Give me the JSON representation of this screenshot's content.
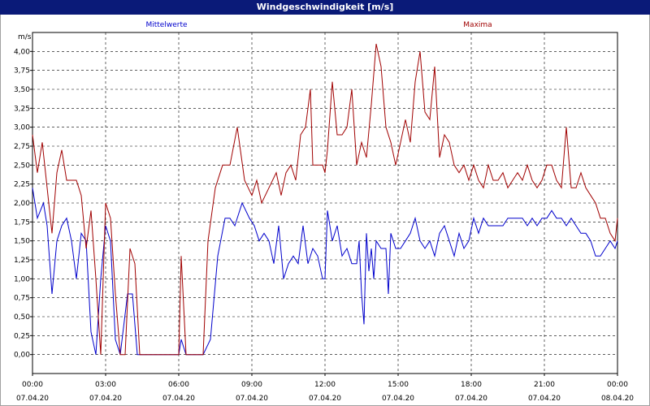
{
  "window": {
    "title": "Windgeschwindigkeit [m/s]"
  },
  "chart_data": {
    "type": "line",
    "title": "Windgeschwindigkeit [m/s]",
    "ylabel": "m/s",
    "xlabel": "",
    "ylim": [
      -0.25,
      4.25
    ],
    "grid": true,
    "legend_placement": "top",
    "x_ticks": [
      {
        "time": "00:00",
        "date": "07.04.20"
      },
      {
        "time": "03:00",
        "date": "07.04.20"
      },
      {
        "time": "06:00",
        "date": "07.04.20"
      },
      {
        "time": "09:00",
        "date": "07.04.20"
      },
      {
        "time": "12:00",
        "date": "07.04.20"
      },
      {
        "time": "15:00",
        "date": "07.04.20"
      },
      {
        "time": "18:00",
        "date": "07.04.20"
      },
      {
        "time": "21:00",
        "date": "07.04.20"
      },
      {
        "time": "00:00",
        "date": "08.04.20"
      }
    ],
    "y_ticks": [
      "0,00",
      "0,25",
      "0,50",
      "0,75",
      "1,00",
      "1,25",
      "1,50",
      "1,75",
      "2,00",
      "2,25",
      "2,50",
      "2,75",
      "3,00",
      "3,25",
      "3,50",
      "3,75",
      "4,00"
    ],
    "series": [
      {
        "name": "Mittelwerte",
        "color": "#0000cc",
        "points": [
          [
            0,
            2.2
          ],
          [
            0.2,
            1.8
          ],
          [
            0.45,
            2.0
          ],
          [
            0.6,
            1.7
          ],
          [
            0.8,
            0.8
          ],
          [
            1.0,
            1.5
          ],
          [
            1.2,
            1.7
          ],
          [
            1.4,
            1.8
          ],
          [
            1.6,
            1.5
          ],
          [
            1.8,
            1.0
          ],
          [
            2.0,
            1.6
          ],
          [
            2.2,
            1.5
          ],
          [
            2.4,
            0.3
          ],
          [
            2.6,
            0.0
          ],
          [
            2.8,
            1.0
          ],
          [
            3.0,
            1.7
          ],
          [
            3.2,
            1.5
          ],
          [
            3.4,
            0.2
          ],
          [
            3.6,
            0.0
          ],
          [
            3.9,
            0.8
          ],
          [
            4.1,
            0.8
          ],
          [
            4.3,
            0.0
          ],
          [
            4.5,
            0.0
          ],
          [
            5.0,
            0.0
          ],
          [
            5.5,
            0.0
          ],
          [
            6.0,
            0.0
          ],
          [
            6.1,
            0.2
          ],
          [
            6.3,
            0.0
          ],
          [
            7.0,
            0.0
          ],
          [
            7.3,
            0.2
          ],
          [
            7.6,
            1.3
          ],
          [
            7.9,
            1.8
          ],
          [
            8.1,
            1.8
          ],
          [
            8.3,
            1.7
          ],
          [
            8.6,
            2.0
          ],
          [
            8.9,
            1.8
          ],
          [
            9.1,
            1.7
          ],
          [
            9.3,
            1.5
          ],
          [
            9.5,
            1.6
          ],
          [
            9.7,
            1.5
          ],
          [
            9.9,
            1.2
          ],
          [
            10.1,
            1.7
          ],
          [
            10.3,
            1.0
          ],
          [
            10.5,
            1.2
          ],
          [
            10.7,
            1.3
          ],
          [
            10.9,
            1.2
          ],
          [
            11.1,
            1.7
          ],
          [
            11.3,
            1.2
          ],
          [
            11.5,
            1.4
          ],
          [
            11.7,
            1.3
          ],
          [
            11.9,
            1.0
          ],
          [
            12.0,
            1.0
          ],
          [
            12.1,
            1.9
          ],
          [
            12.3,
            1.5
          ],
          [
            12.5,
            1.7
          ],
          [
            12.7,
            1.3
          ],
          [
            12.9,
            1.4
          ],
          [
            13.1,
            1.2
          ],
          [
            13.3,
            1.2
          ],
          [
            13.4,
            1.5
          ],
          [
            13.5,
            0.8
          ],
          [
            13.6,
            0.4
          ],
          [
            13.7,
            1.6
          ],
          [
            13.8,
            1.1
          ],
          [
            13.9,
            1.4
          ],
          [
            14.0,
            1.0
          ],
          [
            14.1,
            1.5
          ],
          [
            14.3,
            1.4
          ],
          [
            14.5,
            1.4
          ],
          [
            14.6,
            0.8
          ],
          [
            14.7,
            1.6
          ],
          [
            14.9,
            1.4
          ],
          [
            15.1,
            1.4
          ],
          [
            15.3,
            1.5
          ],
          [
            15.5,
            1.6
          ],
          [
            15.7,
            1.8
          ],
          [
            15.9,
            1.5
          ],
          [
            16.1,
            1.4
          ],
          [
            16.3,
            1.5
          ],
          [
            16.5,
            1.3
          ],
          [
            16.7,
            1.6
          ],
          [
            16.9,
            1.7
          ],
          [
            17.1,
            1.5
          ],
          [
            17.3,
            1.3
          ],
          [
            17.5,
            1.6
          ],
          [
            17.7,
            1.4
          ],
          [
            17.9,
            1.5
          ],
          [
            18.1,
            1.8
          ],
          [
            18.3,
            1.6
          ],
          [
            18.5,
            1.8
          ],
          [
            18.7,
            1.7
          ],
          [
            19.0,
            1.7
          ],
          [
            19.3,
            1.7
          ],
          [
            19.5,
            1.8
          ],
          [
            19.8,
            1.8
          ],
          [
            20.1,
            1.8
          ],
          [
            20.3,
            1.7
          ],
          [
            20.5,
            1.8
          ],
          [
            20.7,
            1.7
          ],
          [
            20.9,
            1.8
          ],
          [
            21.1,
            1.8
          ],
          [
            21.3,
            1.9
          ],
          [
            21.5,
            1.8
          ],
          [
            21.7,
            1.8
          ],
          [
            21.9,
            1.7
          ],
          [
            22.1,
            1.8
          ],
          [
            22.3,
            1.7
          ],
          [
            22.5,
            1.6
          ],
          [
            22.7,
            1.6
          ],
          [
            22.9,
            1.5
          ],
          [
            23.1,
            1.3
          ],
          [
            23.3,
            1.3
          ],
          [
            23.5,
            1.4
          ],
          [
            23.7,
            1.5
          ],
          [
            23.9,
            1.4
          ],
          [
            24.0,
            1.5
          ]
        ]
      },
      {
        "name": "Maxima",
        "color": "#a00000",
        "points": [
          [
            0,
            2.9
          ],
          [
            0.2,
            2.4
          ],
          [
            0.4,
            2.8
          ],
          [
            0.6,
            2.2
          ],
          [
            0.8,
            1.6
          ],
          [
            1.0,
            2.4
          ],
          [
            1.2,
            2.7
          ],
          [
            1.4,
            2.3
          ],
          [
            1.6,
            2.3
          ],
          [
            1.8,
            2.3
          ],
          [
            2.0,
            2.1
          ],
          [
            2.2,
            1.4
          ],
          [
            2.4,
            1.9
          ],
          [
            2.6,
            1.0
          ],
          [
            2.8,
            0.0
          ],
          [
            3.0,
            2.0
          ],
          [
            3.2,
            1.8
          ],
          [
            3.4,
            0.8
          ],
          [
            3.6,
            0.0
          ],
          [
            3.8,
            0.0
          ],
          [
            4.0,
            1.4
          ],
          [
            4.2,
            1.2
          ],
          [
            4.4,
            0.0
          ],
          [
            5.0,
            0.0
          ],
          [
            6.0,
            0.0
          ],
          [
            6.1,
            1.3
          ],
          [
            6.3,
            0.0
          ],
          [
            7.0,
            0.0
          ],
          [
            7.2,
            1.5
          ],
          [
            7.5,
            2.2
          ],
          [
            7.8,
            2.5
          ],
          [
            8.1,
            2.5
          ],
          [
            8.4,
            3.0
          ],
          [
            8.7,
            2.3
          ],
          [
            9.0,
            2.1
          ],
          [
            9.2,
            2.3
          ],
          [
            9.4,
            2.0
          ],
          [
            9.7,
            2.2
          ],
          [
            10.0,
            2.4
          ],
          [
            10.2,
            2.1
          ],
          [
            10.4,
            2.4
          ],
          [
            10.6,
            2.5
          ],
          [
            10.8,
            2.3
          ],
          [
            11.0,
            2.9
          ],
          [
            11.2,
            3.0
          ],
          [
            11.4,
            3.5
          ],
          [
            11.5,
            2.5
          ],
          [
            11.7,
            2.5
          ],
          [
            11.9,
            2.5
          ],
          [
            12.0,
            2.4
          ],
          [
            12.1,
            2.7
          ],
          [
            12.3,
            3.6
          ],
          [
            12.5,
            2.9
          ],
          [
            12.7,
            2.9
          ],
          [
            12.9,
            3.0
          ],
          [
            13.1,
            3.5
          ],
          [
            13.3,
            2.5
          ],
          [
            13.5,
            2.8
          ],
          [
            13.7,
            2.6
          ],
          [
            13.9,
            3.3
          ],
          [
            14.1,
            4.1
          ],
          [
            14.3,
            3.8
          ],
          [
            14.5,
            3.0
          ],
          [
            14.7,
            2.8
          ],
          [
            14.9,
            2.5
          ],
          [
            15.1,
            2.8
          ],
          [
            15.3,
            3.1
          ],
          [
            15.5,
            2.8
          ],
          [
            15.7,
            3.6
          ],
          [
            15.9,
            4.0
          ],
          [
            16.1,
            3.2
          ],
          [
            16.3,
            3.1
          ],
          [
            16.5,
            3.8
          ],
          [
            16.7,
            2.6
          ],
          [
            16.9,
            2.9
          ],
          [
            17.1,
            2.8
          ],
          [
            17.3,
            2.5
          ],
          [
            17.5,
            2.4
          ],
          [
            17.7,
            2.5
          ],
          [
            17.9,
            2.3
          ],
          [
            18.1,
            2.5
          ],
          [
            18.3,
            2.3
          ],
          [
            18.5,
            2.2
          ],
          [
            18.7,
            2.5
          ],
          [
            18.9,
            2.3
          ],
          [
            19.1,
            2.3
          ],
          [
            19.3,
            2.4
          ],
          [
            19.5,
            2.2
          ],
          [
            19.7,
            2.3
          ],
          [
            19.9,
            2.4
          ],
          [
            20.1,
            2.3
          ],
          [
            20.3,
            2.5
          ],
          [
            20.5,
            2.3
          ],
          [
            20.7,
            2.2
          ],
          [
            20.9,
            2.3
          ],
          [
            21.1,
            2.5
          ],
          [
            21.3,
            2.5
          ],
          [
            21.5,
            2.3
          ],
          [
            21.7,
            2.2
          ],
          [
            21.9,
            3.0
          ],
          [
            22.1,
            2.2
          ],
          [
            22.3,
            2.2
          ],
          [
            22.5,
            2.4
          ],
          [
            22.7,
            2.2
          ],
          [
            22.9,
            2.1
          ],
          [
            23.1,
            2.0
          ],
          [
            23.3,
            1.8
          ],
          [
            23.5,
            1.8
          ],
          [
            23.7,
            1.6
          ],
          [
            23.9,
            1.5
          ],
          [
            24.0,
            1.8
          ]
        ]
      }
    ]
  }
}
